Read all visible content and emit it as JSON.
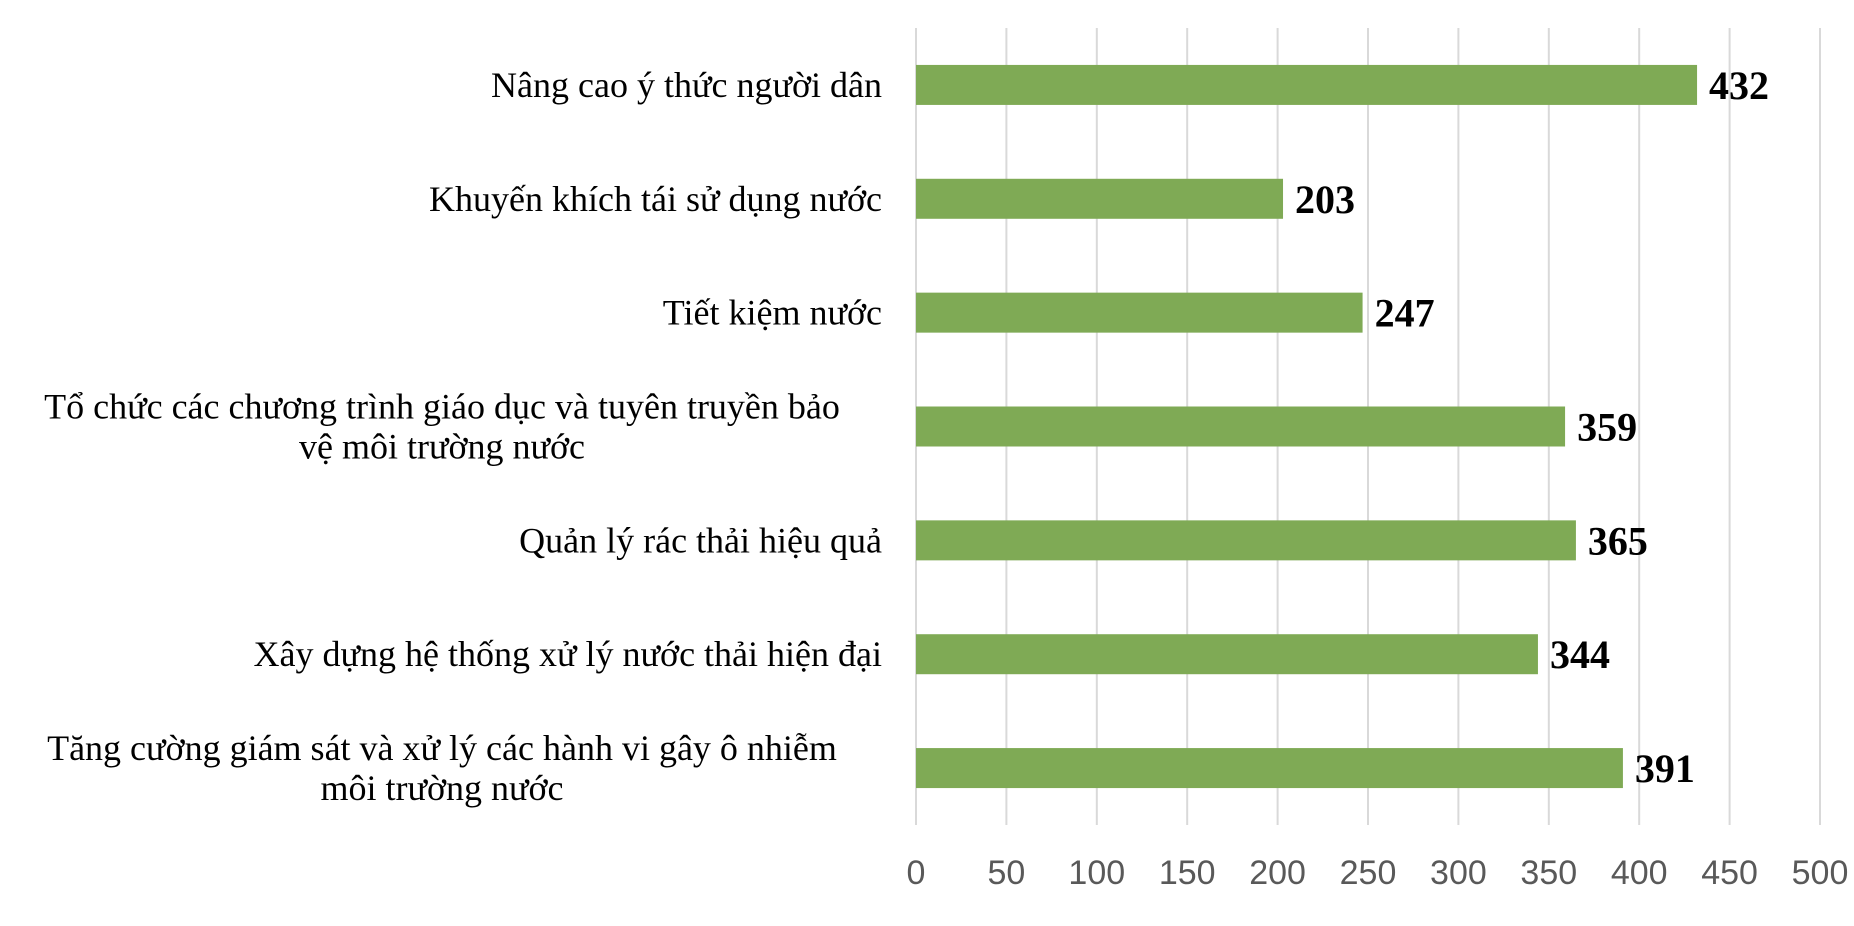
{
  "chart_data": {
    "type": "bar",
    "orientation": "horizontal",
    "categories": [
      [
        "Nâng cao ý thức người dân"
      ],
      [
        "Khuyến khích tái sử dụng nước"
      ],
      [
        "Tiết kiệm nước"
      ],
      [
        "Tổ chức các chương trình giáo dục và tuyên truyền bảo",
        "vệ môi trường nước"
      ],
      [
        "Quản lý rác thải hiệu quả"
      ],
      [
        "Xây dựng hệ thống xử lý nước thải hiện đại"
      ],
      [
        "Tăng cường giám sát và xử lý các hành vi gây ô nhiễm",
        "môi trường nước"
      ]
    ],
    "values": [
      432,
      203,
      247,
      359,
      365,
      344,
      391
    ],
    "data_labels": [
      "432",
      "203",
      "247",
      "359",
      "365",
      "344",
      "391"
    ],
    "x_ticks": [
      "0",
      "50",
      "100",
      "150",
      "200",
      "250",
      "300",
      "350",
      "400",
      "450",
      "500"
    ],
    "xlim": [
      0,
      500
    ],
    "grid": "vertical",
    "legend": "none",
    "bar_color": "#7faa55"
  }
}
